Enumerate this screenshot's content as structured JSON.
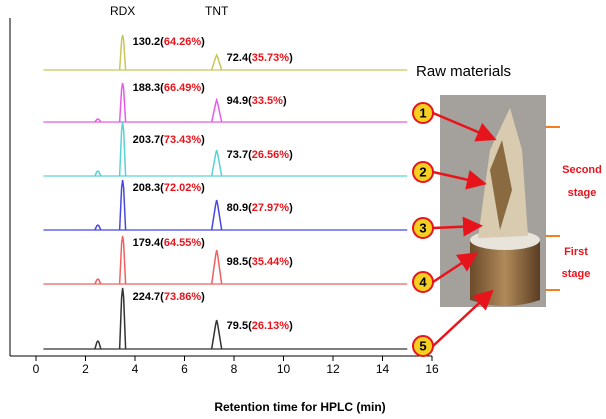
{
  "chart_data": {
    "type": "line",
    "peak_names": [
      "RDX",
      "TNT"
    ],
    "x_label": "Retention time for HPLC (min)",
    "xlim": [
      0,
      16
    ],
    "xticks": [
      0,
      2,
      4,
      6,
      8,
      10,
      12,
      14,
      16
    ],
    "ylim": [
      0,
      60
    ],
    "x": [
      2.5,
      3.5,
      7.3
    ],
    "series": [
      {
        "color": "#c8c85a",
        "values": [
          0,
          35,
          15
        ],
        "rdx_label": [
          "130.2(",
          "64.26%",
          ")"
        ],
        "tnt_label": [
          "72.4(",
          "35.73%",
          ")"
        ]
      },
      {
        "color": "#e85ae8",
        "values": [
          3,
          39,
          22
        ],
        "rdx_label": [
          "188.3(",
          "66.49%",
          ")"
        ],
        "tnt_label": [
          "94.9(",
          "33.5%",
          ")"
        ]
      },
      {
        "color": "#5ad2d2",
        "values": [
          5,
          54,
          26
        ],
        "rdx_label": [
          "203.7(",
          "73.43%",
          ")"
        ],
        "tnt_label": [
          "73.7(",
          "26.56%",
          ")"
        ]
      },
      {
        "color": "#4848e0",
        "values": [
          5,
          50,
          30
        ],
        "rdx_label": [
          "208.3(",
          "72.02%",
          ")"
        ],
        "tnt_label": [
          "80.9(",
          "27.97%",
          ")"
        ]
      },
      {
        "color": "#f06060",
        "values": [
          5,
          48,
          34
        ],
        "rdx_label": [
          "179.4(",
          "64.55%",
          ")"
        ],
        "tnt_label": [
          "98.5(",
          "35.44%",
          ")"
        ]
      },
      {
        "color": "#333333",
        "values": [
          8,
          61,
          29
        ],
        "rdx_label": [
          "224.7(",
          "73.86%",
          ")"
        ],
        "tnt_label": [
          "79.5(",
          "26.13%",
          ")"
        ]
      }
    ],
    "raw_label": "Raw materials",
    "markers": [
      "1",
      "2",
      "3",
      "4",
      "5"
    ],
    "stage_second": [
      "Second",
      "stage"
    ],
    "stage_first": [
      "First",
      "stage"
    ]
  }
}
